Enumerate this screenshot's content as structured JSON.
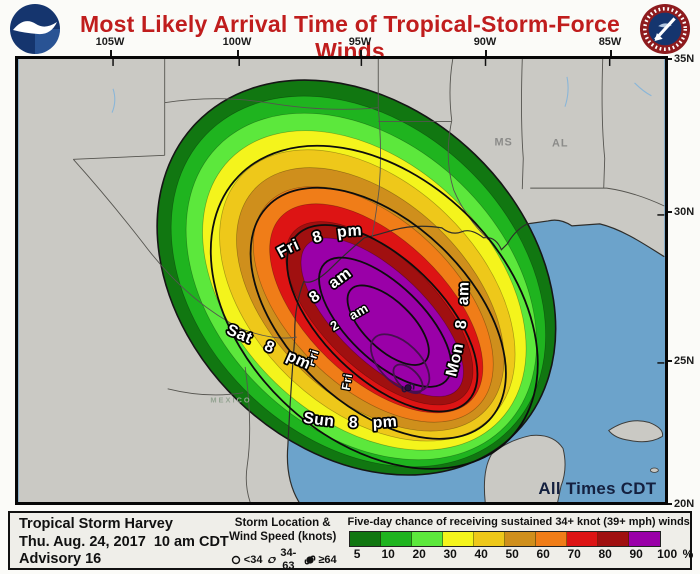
{
  "header": {
    "title": "Most Likely Arrival Time of Tropical-Storm-Force Winds"
  },
  "axes": {
    "lon": [
      "105W",
      "100W",
      "95W",
      "90W",
      "85W"
    ],
    "lat": [
      "35N",
      "30N",
      "25N",
      "20N"
    ]
  },
  "map": {
    "time_labels": {
      "fri_8pm": "Fri 8 pm",
      "fri_8am": "8 am",
      "fri_2am": "2 am",
      "fri_small_1": "Fri",
      "fri_small_2": "Fri",
      "sat_8pm": "Sat 8 pm",
      "sun_8pm": "Sun 8 pm",
      "mon_8am": "Mon 8 am"
    },
    "state_labels": {
      "ms": "MS",
      "al": "AL"
    },
    "country_label": "MEXICO",
    "footnote": "All Times CDT"
  },
  "info": {
    "storm_name": "Tropical Storm Harvey",
    "issued": "Thu. Aug. 24, 2017  10 am CDT",
    "advisory": "Advisory 16"
  },
  "symbols_legend": {
    "title_line1": "Storm Location &",
    "title_line2": "Wind Speed (knots)",
    "items": [
      {
        "icon": "open-circle",
        "label": "<34"
      },
      {
        "icon": "tropical-storm",
        "label": "34-63"
      },
      {
        "icon": "hurricane",
        "label": "≥64"
      }
    ]
  },
  "legend": {
    "title": "Five-day chance of receiving sustained 34+ knot (39+ mph) winds",
    "colors": [
      "#117711",
      "#1fb41f",
      "#5ce83c",
      "#f4f41c",
      "#eec81a",
      "#cf8f1c",
      "#f07d18",
      "#dd1414",
      "#a01010",
      "#9a00a8"
    ],
    "ticks": [
      "5",
      "10",
      "20",
      "30",
      "40",
      "50",
      "60",
      "70",
      "80",
      "90",
      "100"
    ],
    "unit": "%"
  }
}
